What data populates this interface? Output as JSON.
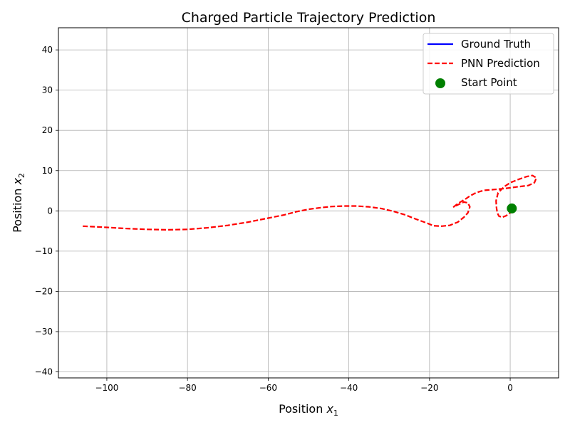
{
  "chart_data": {
    "type": "line",
    "title": "Charged Particle Trajectory Prediction",
    "xlabel": {
      "prefix": "Position ",
      "var": "x",
      "sub": "1"
    },
    "ylabel": {
      "prefix": "Position ",
      "var": "x",
      "sub": "2"
    },
    "xlim": [
      -112,
      12
    ],
    "ylim": [
      -41.5,
      45.5
    ],
    "xticks": [
      -100,
      -80,
      -60,
      -40,
      -20,
      0
    ],
    "xtick_labels": [
      "−100",
      "−80",
      "−60",
      "−40",
      "−20",
      "0"
    ],
    "yticks": [
      -40,
      -30,
      -20,
      -10,
      0,
      10,
      20,
      30,
      40
    ],
    "ytick_labels": [
      "−40",
      "−30",
      "−20",
      "−10",
      "0",
      "10",
      "20",
      "30",
      "40"
    ],
    "grid": true,
    "legend_position": "top-right",
    "series": [
      {
        "name": "Ground Truth",
        "style": "solid",
        "color": "#0000ff",
        "x": [
          0.0,
          0.2,
          0.4,
          0.6,
          0.8,
          0.7,
          0.4,
          0.1,
          0.0
        ],
        "y": [
          0.0,
          0.3,
          0.6,
          0.7,
          0.5,
          0.2,
          0.0,
          -0.1,
          0.0
        ]
      },
      {
        "name": "PNN Prediction",
        "style": "dashed",
        "color": "#ff0000",
        "x": [
          0.0,
          0.5,
          1.0,
          0.8,
          0.0,
          -1.0,
          -2.0,
          -2.8,
          -3.2,
          -3.4,
          -3.5,
          -3.0,
          -1.5,
          0.0,
          2.0,
          4.0,
          5.5,
          6.5,
          6.0,
          4.5,
          2.0,
          -1.0,
          -4.0,
          -6.5,
          -8.5,
          -10.0,
          -11.0,
          -12.0,
          -13.0,
          -14.0,
          -13.0,
          -11.5,
          -10.5,
          -10.0,
          -10.5,
          -11.5,
          -13.0,
          -15.0,
          -17.0,
          -19.0,
          -21.0,
          -23.5,
          -26.0,
          -29.0,
          -32.0,
          -35.0,
          -38.0,
          -41.0,
          -44.0,
          -47.0,
          -50.0,
          -53.0,
          -56.0,
          -60.0,
          -65.0,
          -70.0,
          -75.0,
          -80.0,
          -85.0,
          -90.0,
          -95.0,
          -100.0,
          -106.0
        ],
        "y": [
          0.0,
          0.4,
          0.6,
          0.3,
          -0.5,
          -1.2,
          -1.6,
          -1.3,
          -0.5,
          0.8,
          2.5,
          4.5,
          6.0,
          7.0,
          7.8,
          8.5,
          8.8,
          8.2,
          7.0,
          6.3,
          6.0,
          5.6,
          5.3,
          5.1,
          4.5,
          3.7,
          3.0,
          2.4,
          1.8,
          1.0,
          1.5,
          2.2,
          2.0,
          1.0,
          -0.5,
          -1.6,
          -2.8,
          -3.6,
          -3.8,
          -3.7,
          -2.9,
          -2.0,
          -1.0,
          -0.1,
          0.6,
          1.0,
          1.2,
          1.2,
          1.1,
          0.8,
          0.4,
          -0.2,
          -1.0,
          -1.8,
          -2.8,
          -3.6,
          -4.2,
          -4.6,
          -4.7,
          -4.6,
          -4.4,
          -4.1,
          -3.8
        ]
      },
      {
        "name": "Start Point",
        "style": "marker",
        "color": "#008000",
        "x": [
          0.4
        ],
        "y": [
          0.6
        ]
      }
    ]
  }
}
